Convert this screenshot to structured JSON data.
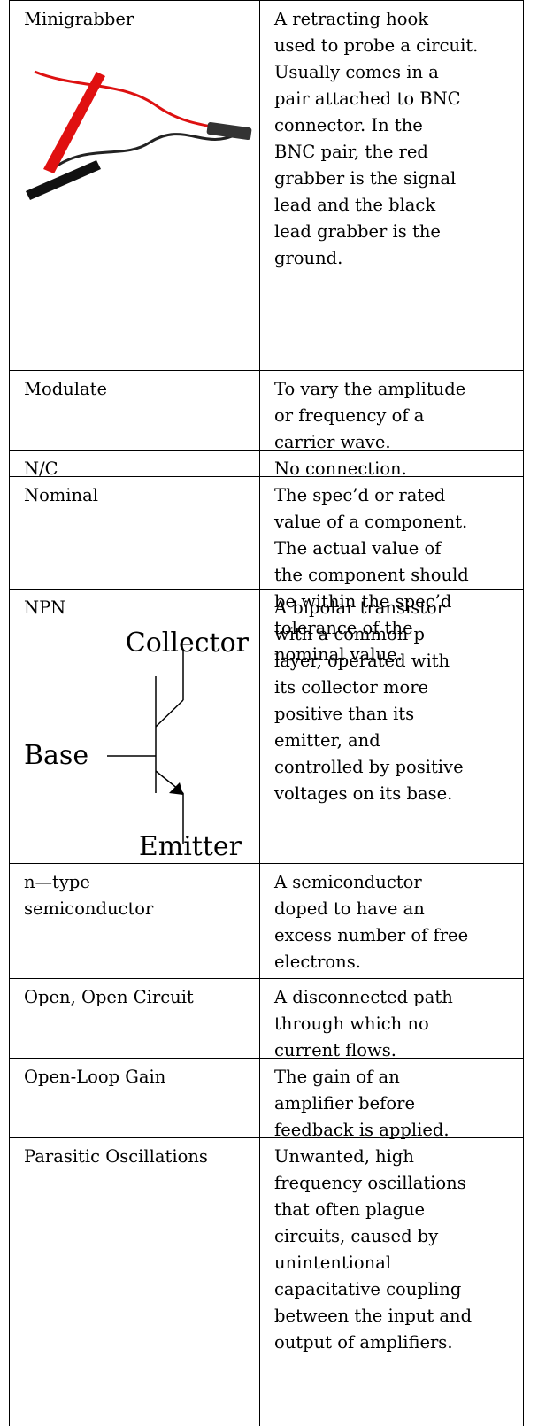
{
  "table": {
    "rows": [
      {
        "term": [
          "Minigrabber"
        ],
        "definition": [
          "A retracting hook",
          "used to probe a circuit.",
          "Usually comes in a",
          "pair attached to BNC",
          "connector.  In the",
          "BNC pair, the red",
          "grabber is the signal",
          "lead and the black",
          "lead grabber is the",
          "ground."
        ]
      },
      {
        "term": [
          "Modulate"
        ],
        "definition": [
          "To vary the amplitude",
          "or frequency of a",
          "carrier wave."
        ]
      },
      {
        "term": [
          "N/C"
        ],
        "definition": [
          "No connection."
        ]
      },
      {
        "term": [
          "Nominal"
        ],
        "definition": [
          "The spec’d or rated",
          "value of a component.",
          "The actual value of",
          "the component should",
          "be within the spec’d",
          "tolerance of the",
          "nominal value."
        ]
      },
      {
        "term": [
          "NPN"
        ],
        "diagram": {
          "collector": "Collector",
          "base": "Base",
          "emitter": "Emitter"
        },
        "definition": [
          "A bipolar transistor",
          "with a common p",
          "layer, operated with",
          "its collector more",
          "positive than its",
          "emitter, and",
          "controlled by positive",
          "voltages on its base."
        ]
      },
      {
        "term": [
          "n—type",
          "semiconductor"
        ],
        "definition": [
          "A semiconductor",
          "doped to have an",
          "excess number of free",
          "electrons."
        ]
      },
      {
        "term": [
          "Open, Open Circuit"
        ],
        "definition": [
          "A disconnected path",
          "through which no",
          "current flows."
        ]
      },
      {
        "term": [
          "Open-Loop Gain"
        ],
        "definition": [
          "The gain of an",
          "amplifier before",
          "feedback is applied."
        ]
      },
      {
        "term": [
          "Parasitic Oscillations"
        ],
        "definition": [
          "Unwanted, high",
          "frequency oscillations",
          "that often plague",
          "circuits, caused by",
          "unintentional",
          "capacitative coupling",
          "between the input and",
          "output of amplifiers."
        ]
      }
    ]
  }
}
